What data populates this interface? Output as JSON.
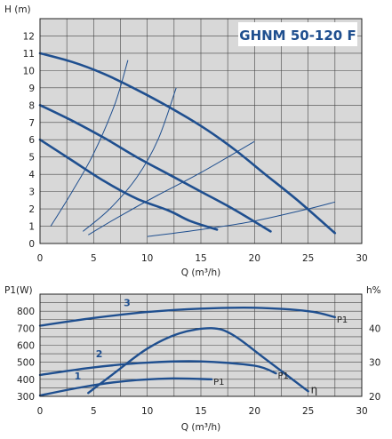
{
  "chart_data": [
    {
      "type": "line",
      "title": "GHNM 50-120 F",
      "ylabel": "H (m)",
      "xlabel": "Q (m³/h)",
      "xlim": [
        0,
        30
      ],
      "ylim": [
        0,
        13
      ],
      "x_ticks": [
        "0",
        "5",
        "10",
        "15",
        "20",
        "25",
        "30"
      ],
      "y_ticks": [
        "0",
        "1",
        "2",
        "3",
        "4",
        "5",
        "6",
        "7",
        "8",
        "9",
        "10",
        "11",
        "12"
      ],
      "grid": true,
      "colors": {
        "background": "#d8d8d8",
        "curve": "#1f4f8f",
        "title": "#1f4f8f"
      },
      "series": [
        {
          "values": [
            [
              0,
              11
            ],
            [
              3,
              10.5
            ],
            [
              6,
              9.8
            ],
            [
              9,
              8.9
            ],
            [
              12,
              7.9
            ],
            [
              15,
              6.8
            ],
            [
              18,
              5.5
            ],
            [
              21,
              4.0
            ],
            [
              24,
              2.5
            ],
            [
              27.5,
              0.6
            ]
          ]
        },
        {
          "values": [
            [
              0,
              8
            ],
            [
              3,
              7.1
            ],
            [
              6,
              6.1
            ],
            [
              9,
              5.0
            ],
            [
              12,
              4.0
            ],
            [
              15,
              3.0
            ],
            [
              18,
              2.0
            ],
            [
              21.5,
              0.7
            ]
          ]
        },
        {
          "values": [
            [
              0,
              6
            ],
            [
              3,
              4.8
            ],
            [
              6,
              3.6
            ],
            [
              9,
              2.6
            ],
            [
              12,
              1.9
            ],
            [
              14,
              1.3
            ],
            [
              16.5,
              0.8
            ]
          ]
        }
      ],
      "system_curves": [
        {
          "values": [
            [
              1,
              1
            ],
            [
              3,
              3
            ],
            [
              5,
              5.2
            ],
            [
              7,
              8.1
            ],
            [
              8.2,
              10.6
            ]
          ]
        },
        {
          "values": [
            [
              4,
              0.7
            ],
            [
              6.5,
              2.0
            ],
            [
              9,
              3.8
            ],
            [
              11,
              6.0
            ],
            [
              12.7,
              9.0
            ]
          ]
        },
        {
          "values": [
            [
              4.5,
              0.5
            ],
            [
              7.5,
              1.6
            ],
            [
              11,
              2.8
            ],
            [
              15,
              4.1
            ],
            [
              20,
              5.9
            ]
          ]
        },
        {
          "values": [
            [
              10,
              0.4
            ],
            [
              15,
              0.8
            ],
            [
              20,
              1.3
            ],
            [
              25,
              2.0
            ],
            [
              27.5,
              2.4
            ]
          ]
        }
      ]
    },
    {
      "type": "line",
      "ylabel": "P1(W)",
      "ylabel_right": "h%",
      "xlabel": "Q (m³/h)",
      "xlim": [
        0,
        30
      ],
      "ylim": [
        300,
        900
      ],
      "ylim_right": [
        20,
        50
      ],
      "x_ticks": [
        "0",
        "5",
        "10",
        "15",
        "20",
        "25",
        "30"
      ],
      "y_ticks": [
        "300",
        "400",
        "500",
        "600",
        "700",
        "800"
      ],
      "y_ticks_right": [
        "20",
        "30",
        "40"
      ],
      "grid": true,
      "series": [
        {
          "label": "3",
          "end_label": "P1",
          "values": [
            [
              0,
              715
            ],
            [
              5,
              760
            ],
            [
              10,
              795
            ],
            [
              15,
              815
            ],
            [
              20,
              820
            ],
            [
              25,
              800
            ],
            [
              27.5,
              765
            ]
          ]
        },
        {
          "label": "2",
          "end_label": "P1",
          "values": [
            [
              0,
              425
            ],
            [
              5,
              470
            ],
            [
              10,
              498
            ],
            [
              15,
              505
            ],
            [
              20,
              480
            ],
            [
              22,
              435
            ]
          ]
        },
        {
          "label": "1",
          "end_label": "P1",
          "values": [
            [
              0,
              305
            ],
            [
              4,
              355
            ],
            [
              8,
              390
            ],
            [
              12,
              405
            ],
            [
              16,
              400
            ]
          ]
        }
      ],
      "efficiency_curve": {
        "label": "η",
        "values": [
          [
            4.5,
            21
          ],
          [
            7,
            27
          ],
          [
            10,
            34
          ],
          [
            13,
            38.5
          ],
          [
            16,
            40
          ],
          [
            18,
            38
          ],
          [
            21,
            31
          ],
          [
            25,
            21.5
          ]
        ]
      }
    }
  ]
}
